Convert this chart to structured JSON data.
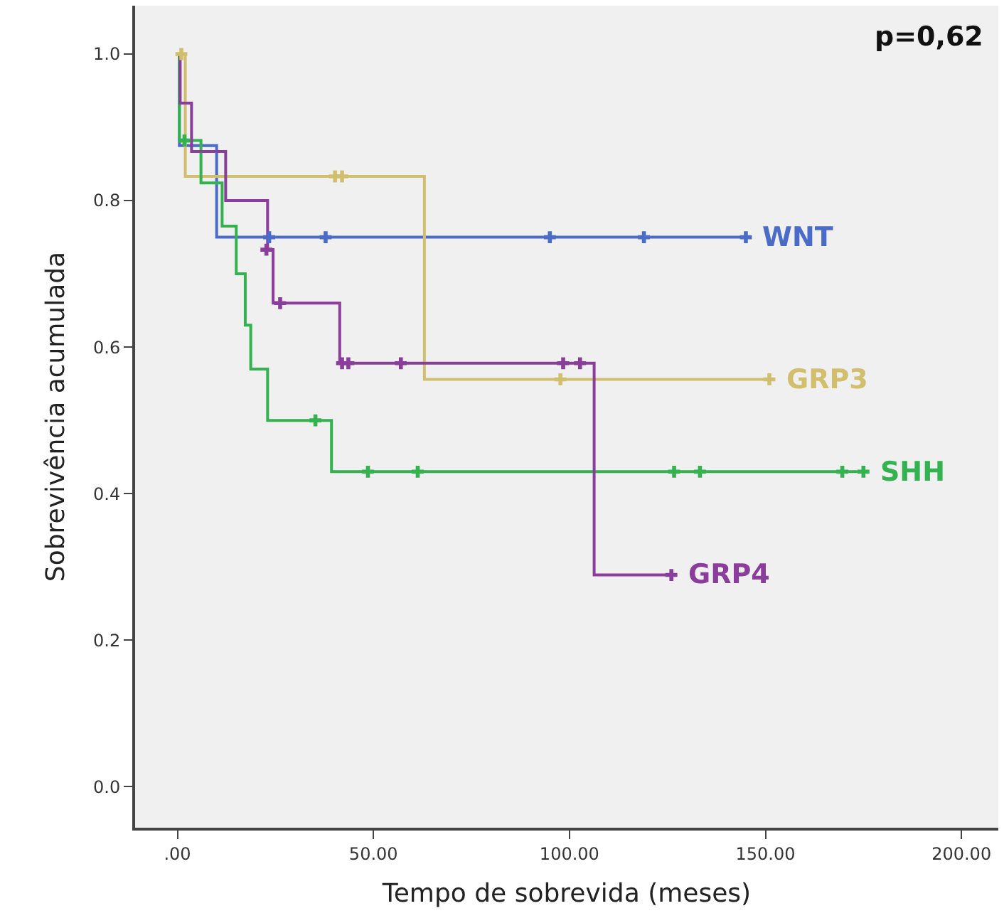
{
  "chart_data": {
    "type": "step",
    "xlabel": "Tempo de sobrevida (meses)",
    "ylabel": "Sobrevivência acumulada",
    "xlim": [
      -10.8,
      209.4
    ],
    "ylim": [
      -0.056,
      1.066
    ],
    "xticks": [
      {
        "value": 0,
        "label": ".00"
      },
      {
        "value": 50,
        "label": "50.00"
      },
      {
        "value": 100,
        "label": "100.00"
      },
      {
        "value": 150,
        "label": "150.00"
      },
      {
        "value": 200,
        "label": "200.00"
      }
    ],
    "yticks": [
      {
        "value": 0,
        "label": "0.0"
      },
      {
        "value": 0.2,
        "label": "0.2"
      },
      {
        "value": 0.4,
        "label": "0.4"
      },
      {
        "value": 0.6,
        "label": "0.6"
      },
      {
        "value": 0.8,
        "label": "0.8"
      },
      {
        "value": 1.0,
        "label": "1.0"
      }
    ],
    "grid": false,
    "marker": "none",
    "line_style": "solid",
    "annotations": [
      "p=0,62"
    ],
    "series": [
      {
        "name": "WNT",
        "color": "#4a6cc8",
        "x": [
          0,
          0.5,
          10,
          145
        ],
        "values": [
          1.0,
          0.875,
          0.75,
          0.75
        ]
      },
      {
        "name": "GRP3",
        "color": "#d2bf6e",
        "x": [
          0,
          2,
          63,
          151
        ],
        "values": [
          1.0,
          0.833,
          0.556,
          0.556
        ]
      },
      {
        "name": "SHH",
        "color": "#33b24f",
        "x": [
          0,
          0.5,
          6,
          11.4,
          15,
          17.3,
          18.7,
          23,
          39.3,
          175
        ],
        "values": [
          1.0,
          0.882,
          0.824,
          0.765,
          0.7,
          0.63,
          0.57,
          0.5,
          0.43,
          0.43
        ]
      },
      {
        "name": "GRP4",
        "color": "#8a3d9a",
        "x": [
          0,
          0.7,
          3.6,
          12.3,
          23,
          24.4,
          41.4,
          106.3,
          126
        ],
        "values": [
          1.0,
          0.933,
          0.867,
          0.8,
          0.733,
          0.66,
          0.578,
          0.289,
          0.289
        ]
      },
      {
        "type": "scatter",
        "marker": "cross",
        "color": "#4a6cc8",
        "x": [
          23.4,
          37.8,
          95,
          119,
          145
        ],
        "values": [
          0.75,
          0.75,
          0.75,
          0.75,
          0.75
        ]
      },
      {
        "type": "scatter",
        "marker": "cross",
        "color": "#d2bf6e",
        "x": [
          1,
          40.2,
          42,
          97.7,
          151
        ],
        "values": [
          1.0,
          0.833,
          0.833,
          0.556,
          0.556
        ]
      },
      {
        "type": "scatter",
        "marker": "cross",
        "color": "#33b24f",
        "x": [
          1.8,
          35.2,
          48.6,
          61.3,
          126.7,
          133.3,
          169.6,
          175
        ],
        "values": [
          0.882,
          0.5,
          0.43,
          0.43,
          0.43,
          0.43,
          0.43,
          0.43
        ]
      },
      {
        "type": "scatter",
        "marker": "cross",
        "color": "#8a3d9a",
        "x": [
          22.7,
          26.2,
          42,
          43.6,
          57,
          98.4,
          102.7,
          126
        ],
        "values": [
          0.733,
          0.66,
          0.578,
          0.578,
          0.578,
          0.578,
          0.578,
          0.289
        ]
      }
    ]
  }
}
